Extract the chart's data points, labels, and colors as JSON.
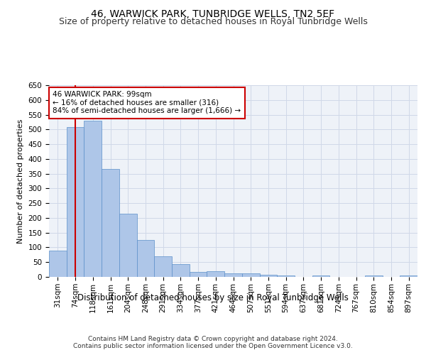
{
  "title1": "46, WARWICK PARK, TUNBRIDGE WELLS, TN2 5EF",
  "title2": "Size of property relative to detached houses in Royal Tunbridge Wells",
  "xlabel": "Distribution of detached houses by size in Royal Tunbridge Wells",
  "ylabel": "Number of detached properties",
  "footer1": "Contains HM Land Registry data © Crown copyright and database right 2024.",
  "footer2": "Contains public sector information licensed under the Open Government Licence v3.0.",
  "categories": [
    "31sqm",
    "74sqm",
    "118sqm",
    "161sqm",
    "204sqm",
    "248sqm",
    "291sqm",
    "334sqm",
    "377sqm",
    "421sqm",
    "464sqm",
    "507sqm",
    "551sqm",
    "594sqm",
    "637sqm",
    "681sqm",
    "724sqm",
    "767sqm",
    "810sqm",
    "854sqm",
    "897sqm"
  ],
  "values": [
    90,
    507,
    530,
    365,
    215,
    126,
    70,
    43,
    16,
    19,
    11,
    11,
    8,
    5,
    0,
    5,
    0,
    0,
    4,
    0,
    4
  ],
  "bar_color": "#aec6e8",
  "bar_edge_color": "#5b8fc9",
  "annotation_box_text": "46 WARWICK PARK: 99sqm\n← 16% of detached houses are smaller (316)\n84% of semi-detached houses are larger (1,666) →",
  "annotation_box_color": "#ffffff",
  "annotation_box_edge_color": "#cc0000",
  "vline_x": 1,
  "vline_color": "#cc0000",
  "ylim": [
    0,
    650
  ],
  "yticks": [
    0,
    50,
    100,
    150,
    200,
    250,
    300,
    350,
    400,
    450,
    500,
    550,
    600,
    650
  ],
  "grid_color": "#d0d8e8",
  "background_color": "#eef2f8",
  "title1_fontsize": 10,
  "title2_fontsize": 9,
  "xlabel_fontsize": 8.5,
  "ylabel_fontsize": 8,
  "tick_fontsize": 7.5,
  "annotation_fontsize": 7.5,
  "footer_fontsize": 6.5
}
